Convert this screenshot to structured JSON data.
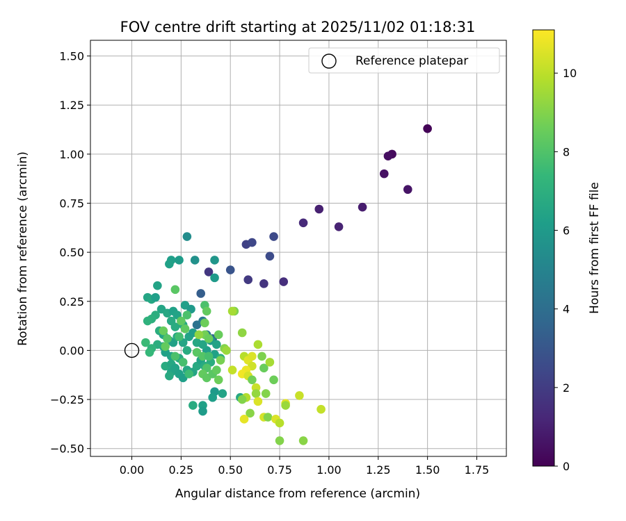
{
  "chart_data": {
    "type": "scatter",
    "title": "FOV centre drift starting at 2025/11/02 01:18:31",
    "xlabel": "Angular distance from reference (arcmin)",
    "ylabel": "Rotation from reference (arcmin)",
    "xlim": [
      -0.21,
      1.9
    ],
    "ylim": [
      -0.54,
      1.58
    ],
    "xticks": [
      0.0,
      0.25,
      0.5,
      0.75,
      1.0,
      1.25,
      1.5,
      1.75
    ],
    "xtick_labels": [
      "0.00",
      "0.25",
      "0.50",
      "0.75",
      "1.00",
      "1.25",
      "1.50",
      "1.75"
    ],
    "yticks": [
      -0.5,
      -0.25,
      0.0,
      0.25,
      0.5,
      0.75,
      1.0,
      1.25,
      1.5
    ],
    "ytick_labels": [
      "−0.50",
      "−0.25",
      "0.00",
      "0.25",
      "0.50",
      "0.75",
      "1.00",
      "1.25",
      "1.50"
    ],
    "grid": true,
    "legend": {
      "location": "top-right",
      "label": "Reference platepar"
    },
    "reference_point": {
      "x": 0.0,
      "y": 0.0
    },
    "colorbar": {
      "label": "Hours from first FF file",
      "min": 0,
      "max": 11.1,
      "ticks": [
        0,
        2,
        4,
        6,
        8,
        10
      ],
      "tick_labels": [
        "0",
        "2",
        "4",
        "6",
        "8",
        "10"
      ],
      "colormap": [
        "#440154",
        "#482878",
        "#3e4989",
        "#31688e",
        "#26828e",
        "#1f9e89",
        "#35b779",
        "#6ece58",
        "#b5de2b",
        "#fde725"
      ]
    },
    "points": [
      {
        "x": 1.5,
        "y": 1.13,
        "h": 0.1
      },
      {
        "x": 1.32,
        "y": 1.0,
        "h": 0.3
      },
      {
        "x": 1.3,
        "y": 0.99,
        "h": 0.4
      },
      {
        "x": 1.28,
        "y": 0.9,
        "h": 0.5
      },
      {
        "x": 1.4,
        "y": 0.82,
        "h": 0.6
      },
      {
        "x": 1.17,
        "y": 0.73,
        "h": 0.9
      },
      {
        "x": 0.95,
        "y": 0.72,
        "h": 1.0
      },
      {
        "x": 1.05,
        "y": 0.63,
        "h": 1.1
      },
      {
        "x": 0.87,
        "y": 0.65,
        "h": 1.3
      },
      {
        "x": 0.77,
        "y": 0.35,
        "h": 1.5
      },
      {
        "x": 0.67,
        "y": 0.34,
        "h": 1.7
      },
      {
        "x": 0.59,
        "y": 0.36,
        "h": 1.9
      },
      {
        "x": 0.39,
        "y": 0.4,
        "h": 1.8
      },
      {
        "x": 0.58,
        "y": 0.54,
        "h": 2.2
      },
      {
        "x": 0.61,
        "y": 0.55,
        "h": 2.4
      },
      {
        "x": 0.72,
        "y": 0.58,
        "h": 2.5
      },
      {
        "x": 0.7,
        "y": 0.48,
        "h": 2.6
      },
      {
        "x": 0.5,
        "y": 0.41,
        "h": 2.9
      },
      {
        "x": 0.35,
        "y": 0.29,
        "h": 3.3
      },
      {
        "x": 0.41,
        "y": 0.06,
        "h": 3.8
      },
      {
        "x": 0.33,
        "y": 0.13,
        "h": 4.2
      },
      {
        "x": 0.36,
        "y": 0.15,
        "h": 4.5
      },
      {
        "x": 0.38,
        "y": 0.08,
        "h": 4.6
      },
      {
        "x": 0.28,
        "y": 0.58,
        "h": 5.4
      },
      {
        "x": 0.32,
        "y": 0.46,
        "h": 5.6
      },
      {
        "x": 0.42,
        "y": 0.46,
        "h": 5.8
      },
      {
        "x": 0.42,
        "y": 0.37,
        "h": 6.0
      },
      {
        "x": 0.24,
        "y": 0.46,
        "h": 6.1
      },
      {
        "x": 0.2,
        "y": 0.46,
        "h": 6.2
      },
      {
        "x": 0.19,
        "y": 0.44,
        "h": 6.3
      },
      {
        "x": 0.13,
        "y": 0.33,
        "h": 6.4
      },
      {
        "x": 0.08,
        "y": 0.27,
        "h": 6.5
      },
      {
        "x": 0.1,
        "y": 0.26,
        "h": 6.6
      },
      {
        "x": 0.12,
        "y": 0.27,
        "h": 6.2
      },
      {
        "x": 0.15,
        "y": 0.21,
        "h": 6.5
      },
      {
        "x": 0.18,
        "y": 0.19,
        "h": 6.6
      },
      {
        "x": 0.21,
        "y": 0.2,
        "h": 6.3
      },
      {
        "x": 0.23,
        "y": 0.18,
        "h": 6.4
      },
      {
        "x": 0.27,
        "y": 0.23,
        "h": 6.2
      },
      {
        "x": 0.3,
        "y": 0.21,
        "h": 6.0
      },
      {
        "x": 0.2,
        "y": 0.15,
        "h": 6.7
      },
      {
        "x": 0.22,
        "y": 0.12,
        "h": 6.8
      },
      {
        "x": 0.26,
        "y": 0.13,
        "h": 6.6
      },
      {
        "x": 0.12,
        "y": 0.18,
        "h": 6.9
      },
      {
        "x": 0.1,
        "y": 0.16,
        "h": 7.0
      },
      {
        "x": 0.08,
        "y": 0.15,
        "h": 7.1
      },
      {
        "x": 0.14,
        "y": 0.1,
        "h": 6.9
      },
      {
        "x": 0.16,
        "y": 0.08,
        "h": 6.5
      },
      {
        "x": 0.19,
        "y": 0.05,
        "h": 6.4
      },
      {
        "x": 0.21,
        "y": 0.04,
        "h": 6.3
      },
      {
        "x": 0.23,
        "y": 0.07,
        "h": 6.6
      },
      {
        "x": 0.26,
        "y": 0.04,
        "h": 6.5
      },
      {
        "x": 0.29,
        "y": 0.07,
        "h": 6.4
      },
      {
        "x": 0.31,
        "y": 0.09,
        "h": 6.2
      },
      {
        "x": 0.33,
        "y": 0.04,
        "h": 6.6
      },
      {
        "x": 0.28,
        "y": 0.0,
        "h": 6.8
      },
      {
        "x": 0.24,
        "y": -0.04,
        "h": 6.7
      },
      {
        "x": 0.2,
        "y": -0.03,
        "h": 6.4
      },
      {
        "x": 0.17,
        "y": -0.01,
        "h": 6.3
      },
      {
        "x": 0.16,
        "y": 0.02,
        "h": 6.6
      },
      {
        "x": 0.13,
        "y": 0.03,
        "h": 6.9
      },
      {
        "x": 0.1,
        "y": 0.01,
        "h": 7.2
      },
      {
        "x": 0.07,
        "y": 0.04,
        "h": 7.5
      },
      {
        "x": 0.09,
        "y": -0.01,
        "h": 7.4
      },
      {
        "x": 0.17,
        "y": -0.08,
        "h": 6.8
      },
      {
        "x": 0.2,
        "y": -0.07,
        "h": 6.6
      },
      {
        "x": 0.2,
        "y": -0.11,
        "h": 6.5
      },
      {
        "x": 0.22,
        "y": -0.09,
        "h": 6.4
      },
      {
        "x": 0.19,
        "y": -0.13,
        "h": 6.7
      },
      {
        "x": 0.24,
        "y": -0.12,
        "h": 6.3
      },
      {
        "x": 0.26,
        "y": -0.14,
        "h": 6.2
      },
      {
        "x": 0.28,
        "y": -0.1,
        "h": 6.6
      },
      {
        "x": 0.31,
        "y": -0.11,
        "h": 6.5
      },
      {
        "x": 0.33,
        "y": -0.08,
        "h": 6.7
      },
      {
        "x": 0.35,
        "y": -0.05,
        "h": 6.4
      },
      {
        "x": 0.37,
        "y": -0.08,
        "h": 6.8
      },
      {
        "x": 0.4,
        "y": -0.06,
        "h": 6.9
      },
      {
        "x": 0.42,
        "y": -0.02,
        "h": 6.3
      },
      {
        "x": 0.38,
        "y": 0.0,
        "h": 6.2
      },
      {
        "x": 0.36,
        "y": 0.03,
        "h": 6.5
      },
      {
        "x": 0.4,
        "y": 0.05,
        "h": 6.1
      },
      {
        "x": 0.43,
        "y": 0.03,
        "h": 6.4
      },
      {
        "x": 0.45,
        "y": -0.04,
        "h": 6.9
      },
      {
        "x": 0.42,
        "y": -0.21,
        "h": 6.0
      },
      {
        "x": 0.41,
        "y": -0.24,
        "h": 6.2
      },
      {
        "x": 0.46,
        "y": -0.22,
        "h": 6.4
      },
      {
        "x": 0.36,
        "y": -0.28,
        "h": 6.3
      },
      {
        "x": 0.36,
        "y": -0.31,
        "h": 6.1
      },
      {
        "x": 0.31,
        "y": -0.28,
        "h": 6.8
      },
      {
        "x": 0.55,
        "y": -0.24,
        "h": 6.6
      },
      {
        "x": 0.29,
        "y": -0.12,
        "h": 7.6
      },
      {
        "x": 0.26,
        "y": -0.06,
        "h": 7.8
      },
      {
        "x": 0.22,
        "y": -0.03,
        "h": 7.9
      },
      {
        "x": 0.22,
        "y": 0.31,
        "h": 8.2
      },
      {
        "x": 0.25,
        "y": 0.15,
        "h": 8.3
      },
      {
        "x": 0.28,
        "y": 0.18,
        "h": 7.9
      },
      {
        "x": 0.24,
        "y": 0.07,
        "h": 7.7
      },
      {
        "x": 0.18,
        "y": 0.06,
        "h": 8.1
      },
      {
        "x": 0.17,
        "y": 0.02,
        "h": 8.4
      },
      {
        "x": 0.16,
        "y": 0.1,
        "h": 8.5
      },
      {
        "x": 0.27,
        "y": 0.11,
        "h": 8.3
      },
      {
        "x": 0.37,
        "y": 0.23,
        "h": 7.9
      },
      {
        "x": 0.38,
        "y": 0.2,
        "h": 8.4
      },
      {
        "x": 0.37,
        "y": 0.14,
        "h": 8.6
      },
      {
        "x": 0.37,
        "y": 0.08,
        "h": 8.7
      },
      {
        "x": 0.39,
        "y": 0.06,
        "h": 8.5
      },
      {
        "x": 0.34,
        "y": 0.08,
        "h": 9.2
      },
      {
        "x": 0.33,
        "y": -0.01,
        "h": 8.2
      },
      {
        "x": 0.36,
        "y": -0.03,
        "h": 8.1
      },
      {
        "x": 0.39,
        "y": -0.03,
        "h": 7.8
      },
      {
        "x": 0.38,
        "y": -0.09,
        "h": 8.0
      },
      {
        "x": 0.36,
        "y": -0.12,
        "h": 8.4
      },
      {
        "x": 0.38,
        "y": -0.14,
        "h": 8.3
      },
      {
        "x": 0.41,
        "y": -0.12,
        "h": 8.2
      },
      {
        "x": 0.43,
        "y": -0.1,
        "h": 8.4
      },
      {
        "x": 0.44,
        "y": -0.15,
        "h": 8.6
      },
      {
        "x": 0.45,
        "y": -0.05,
        "h": 8.8
      },
      {
        "x": 0.44,
        "y": 0.08,
        "h": 8.5
      },
      {
        "x": 0.47,
        "y": 0.01,
        "h": 9.0
      },
      {
        "x": 0.48,
        "y": 0.0,
        "h": 9.4
      },
      {
        "x": 0.52,
        "y": 0.2,
        "h": 8.9
      },
      {
        "x": 0.51,
        "y": 0.2,
        "h": 9.6
      },
      {
        "x": 0.51,
        "y": -0.1,
        "h": 10.1
      },
      {
        "x": 0.56,
        "y": 0.09,
        "h": 9.2
      },
      {
        "x": 0.57,
        "y": -0.03,
        "h": 9.9
      },
      {
        "x": 0.59,
        "y": -0.05,
        "h": 10.6
      },
      {
        "x": 0.61,
        "y": -0.08,
        "h": 10.3
      },
      {
        "x": 0.61,
        "y": -0.03,
        "h": 10.5
      },
      {
        "x": 0.58,
        "y": -0.1,
        "h": 10.8
      },
      {
        "x": 0.56,
        "y": -0.12,
        "h": 10.9
      },
      {
        "x": 0.59,
        "y": -0.13,
        "h": 10.4
      },
      {
        "x": 0.61,
        "y": -0.15,
        "h": 8.7
      },
      {
        "x": 0.63,
        "y": -0.19,
        "h": 10.2
      },
      {
        "x": 0.64,
        "y": 0.03,
        "h": 9.7
      },
      {
        "x": 0.66,
        "y": -0.03,
        "h": 8.9
      },
      {
        "x": 0.67,
        "y": -0.09,
        "h": 8.5
      },
      {
        "x": 0.7,
        "y": -0.06,
        "h": 9.6
      },
      {
        "x": 0.72,
        "y": -0.15,
        "h": 8.6
      },
      {
        "x": 0.68,
        "y": -0.22,
        "h": 9.0
      },
      {
        "x": 0.63,
        "y": -0.22,
        "h": 9.3
      },
      {
        "x": 0.64,
        "y": -0.26,
        "h": 10.5
      },
      {
        "x": 0.58,
        "y": -0.24,
        "h": 9.8
      },
      {
        "x": 0.56,
        "y": -0.25,
        "h": 9.0
      },
      {
        "x": 0.6,
        "y": -0.32,
        "h": 9.1
      },
      {
        "x": 0.57,
        "y": -0.35,
        "h": 10.7
      },
      {
        "x": 0.67,
        "y": -0.34,
        "h": 10.4
      },
      {
        "x": 0.69,
        "y": -0.34,
        "h": 9.0
      },
      {
        "x": 0.73,
        "y": -0.35,
        "h": 10.5
      },
      {
        "x": 0.75,
        "y": -0.37,
        "h": 9.9
      },
      {
        "x": 0.78,
        "y": -0.27,
        "h": 10.6
      },
      {
        "x": 0.78,
        "y": -0.28,
        "h": 9.4
      },
      {
        "x": 0.85,
        "y": -0.23,
        "h": 10.2
      },
      {
        "x": 0.96,
        "y": -0.3,
        "h": 10.1
      },
      {
        "x": 0.75,
        "y": -0.46,
        "h": 9.0
      },
      {
        "x": 0.87,
        "y": -0.46,
        "h": 9.1
      }
    ]
  }
}
